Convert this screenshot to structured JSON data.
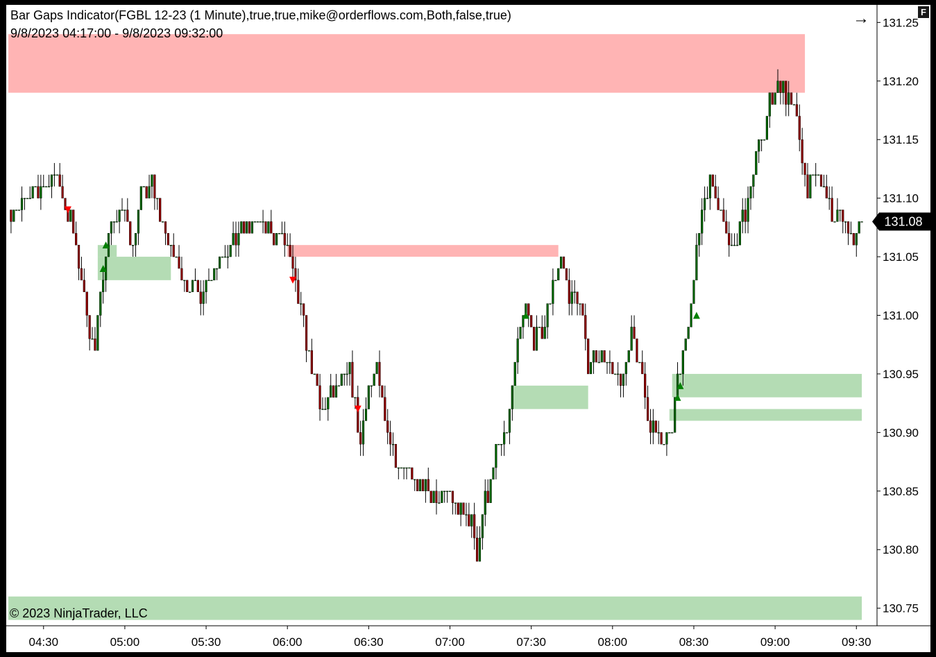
{
  "window": {
    "title": "Bar Gaps Indicator(FGBL 12-23 (1 Minute),true,true,mike@orderflows.com,Both,false,true)",
    "date_range": "9/8/2023 04:17:00 - 9/8/2023 09:32:00",
    "copyright": "© 2023 NinjaTrader, LLC",
    "corner_label": "F",
    "nav_icon": "arrow-right-icon"
  },
  "colors": {
    "background": "#ffffff",
    "up_bar": "#006400",
    "down_bar": "#8b0000",
    "up_gap_zone": "#b4dcb4",
    "down_gap_zone": "#ffb4b4",
    "up_marker": "#008000",
    "down_marker": "#ff0000",
    "price_badge": "#000000"
  },
  "chart_data": {
    "type": "candlestick",
    "instrument": "FGBL 12-23",
    "interval": "1 Minute",
    "current_price": "131.08",
    "yaxis": {
      "range": [
        130.735,
        131.265
      ],
      "ticks": [
        "131.25",
        "131.20",
        "131.15",
        "131.10",
        "131.05",
        "131.00",
        "130.95",
        "130.90",
        "130.85",
        "130.80",
        "130.75"
      ]
    },
    "xaxis": {
      "start": "04:17",
      "end": "09:32",
      "ticks": [
        "04:30",
        "05:00",
        "05:30",
        "06:00",
        "06:30",
        "07:00",
        "07:30",
        "08:00",
        "08:30",
        "09:00",
        "09:30"
      ]
    },
    "anchors": [
      {
        "t": "04:20",
        "p": 131.09
      },
      {
        "t": "04:30",
        "p": 131.11
      },
      {
        "t": "04:35",
        "p": 131.12
      },
      {
        "t": "04:38",
        "p": 131.09
      },
      {
        "t": "04:40",
        "p": 131.08
      },
      {
        "t": "04:44",
        "p": 131.03
      },
      {
        "t": "04:47",
        "p": 130.99
      },
      {
        "t": "04:49",
        "p": 130.97
      },
      {
        "t": "04:52",
        "p": 131.04
      },
      {
        "t": "04:55",
        "p": 131.08
      },
      {
        "t": "05:00",
        "p": 131.09
      },
      {
        "t": "05:03",
        "p": 131.06
      },
      {
        "t": "05:06",
        "p": 131.1
      },
      {
        "t": "05:10",
        "p": 131.11
      },
      {
        "t": "05:14",
        "p": 131.08
      },
      {
        "t": "05:18",
        "p": 131.05
      },
      {
        "t": "05:22",
        "p": 131.03
      },
      {
        "t": "05:28",
        "p": 131.02
      },
      {
        "t": "05:35",
        "p": 131.05
      },
      {
        "t": "05:42",
        "p": 131.07
      },
      {
        "t": "05:48",
        "p": 131.08
      },
      {
        "t": "05:55",
        "p": 131.07
      },
      {
        "t": "06:00",
        "p": 131.06
      },
      {
        "t": "06:02",
        "p": 131.03
      },
      {
        "t": "06:05",
        "p": 131.0
      },
      {
        "t": "06:08",
        "p": 130.97
      },
      {
        "t": "06:12",
        "p": 130.92
      },
      {
        "t": "06:16",
        "p": 130.93
      },
      {
        "t": "06:20",
        "p": 130.94
      },
      {
        "t": "06:23",
        "p": 130.95
      },
      {
        "t": "06:27",
        "p": 130.89
      },
      {
        "t": "06:30",
        "p": 130.94
      },
      {
        "t": "06:33",
        "p": 130.95
      },
      {
        "t": "06:36",
        "p": 130.91
      },
      {
        "t": "06:40",
        "p": 130.88
      },
      {
        "t": "06:45",
        "p": 130.87
      },
      {
        "t": "06:50",
        "p": 130.85
      },
      {
        "t": "06:55",
        "p": 130.84
      },
      {
        "t": "07:00",
        "p": 130.85
      },
      {
        "t": "07:04",
        "p": 130.83
      },
      {
        "t": "07:08",
        "p": 130.82
      },
      {
        "t": "07:10",
        "p": 130.8
      },
      {
        "t": "07:13",
        "p": 130.84
      },
      {
        "t": "07:17",
        "p": 130.88
      },
      {
        "t": "07:21",
        "p": 130.9
      },
      {
        "t": "07:24",
        "p": 130.96
      },
      {
        "t": "07:28",
        "p": 131.01
      },
      {
        "t": "07:31",
        "p": 130.98
      },
      {
        "t": "07:35",
        "p": 130.99
      },
      {
        "t": "07:38",
        "p": 131.03
      },
      {
        "t": "07:41",
        "p": 131.05
      },
      {
        "t": "07:44",
        "p": 131.02
      },
      {
        "t": "07:48",
        "p": 131.01
      },
      {
        "t": "07:51",
        "p": 130.96
      },
      {
        "t": "07:55",
        "p": 130.97
      },
      {
        "t": "08:00",
        "p": 130.95
      },
      {
        "t": "08:04",
        "p": 130.94
      },
      {
        "t": "08:07",
        "p": 130.99
      },
      {
        "t": "08:10",
        "p": 130.95
      },
      {
        "t": "08:14",
        "p": 130.91
      },
      {
        "t": "08:18",
        "p": 130.89
      },
      {
        "t": "08:21",
        "p": 130.89
      },
      {
        "t": "08:24",
        "p": 130.94
      },
      {
        "t": "08:27",
        "p": 130.98
      },
      {
        "t": "08:30",
        "p": 131.03
      },
      {
        "t": "08:33",
        "p": 131.09
      },
      {
        "t": "08:36",
        "p": 131.12
      },
      {
        "t": "08:39",
        "p": 131.1
      },
      {
        "t": "08:42",
        "p": 131.07
      },
      {
        "t": "08:45",
        "p": 131.06
      },
      {
        "t": "08:49",
        "p": 131.09
      },
      {
        "t": "08:52",
        "p": 131.12
      },
      {
        "t": "08:55",
        "p": 131.15
      },
      {
        "t": "08:58",
        "p": 131.18
      },
      {
        "t": "09:02",
        "p": 131.2
      },
      {
        "t": "09:06",
        "p": 131.18
      },
      {
        "t": "09:09",
        "p": 131.15
      },
      {
        "t": "09:12",
        "p": 131.11
      },
      {
        "t": "09:15",
        "p": 131.12
      },
      {
        "t": "09:18",
        "p": 131.11
      },
      {
        "t": "09:22",
        "p": 131.08
      },
      {
        "t": "09:26",
        "p": 131.08
      },
      {
        "t": "09:28",
        "p": 131.06
      },
      {
        "t": "09:31",
        "p": 131.08
      }
    ],
    "gap_zones": [
      {
        "dir": "down",
        "start": "04:17",
        "end": "09:11",
        "low": 131.19,
        "high": 131.24
      },
      {
        "dir": "down",
        "start": "06:00",
        "end": "07:40",
        "low": 131.05,
        "high": 131.06
      },
      {
        "dir": "up",
        "start": "04:50",
        "end": "05:17",
        "low": 131.03,
        "high": 131.05
      },
      {
        "dir": "up",
        "start": "04:50",
        "end": "04:57",
        "low": 131.05,
        "high": 131.06
      },
      {
        "dir": "up",
        "start": "07:23",
        "end": "07:51",
        "low": 130.92,
        "high": 130.94
      },
      {
        "dir": "up",
        "start": "08:22",
        "end": "09:32",
        "low": 130.93,
        "high": 130.95
      },
      {
        "dir": "up",
        "start": "08:21",
        "end": "09:32",
        "low": 130.91,
        "high": 130.92
      },
      {
        "dir": "up",
        "start": "04:17",
        "end": "09:32",
        "low": 130.74,
        "high": 130.76
      }
    ],
    "markers": [
      {
        "dir": "down",
        "t": "04:39",
        "p": 131.09
      },
      {
        "dir": "up",
        "t": "04:52",
        "p": 131.04
      },
      {
        "dir": "up",
        "t": "04:53",
        "p": 131.06
      },
      {
        "dir": "down",
        "t": "06:02",
        "p": 131.03
      },
      {
        "dir": "down",
        "t": "06:26",
        "p": 130.92
      },
      {
        "dir": "up",
        "t": "07:28",
        "p": 131.0
      },
      {
        "dir": "up",
        "t": "08:24",
        "p": 130.93
      },
      {
        "dir": "up",
        "t": "08:25",
        "p": 130.94
      },
      {
        "dir": "up",
        "t": "08:31",
        "p": 131.0
      }
    ]
  }
}
